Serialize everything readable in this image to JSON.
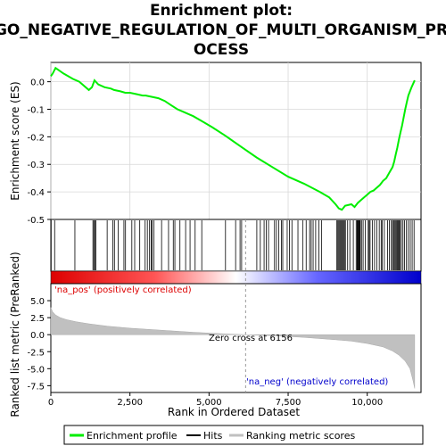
{
  "chart_data": {
    "type": "line",
    "title_line1": "Enrichment plot:",
    "title_line2": "GO_NEGATIVE_REGULATION_OF_MULTI_ORGANISM_PR",
    "title_line3": "OCESS",
    "top_panel": {
      "ylabel": "Enrichment score (ES)",
      "ylim": [
        -0.5,
        0.07
      ],
      "yticks": [
        0.0,
        -0.1,
        -0.2,
        -0.3,
        -0.4,
        -0.5
      ],
      "ytick_labels": [
        "0.0",
        "-0.1",
        "-0.2",
        "-0.3",
        "-0.4",
        "-0.5"
      ],
      "grid": true,
      "series": [
        {
          "name": "Enrichment profile",
          "color": "#00ee00",
          "x": [
            0,
            60,
            150,
            400,
            700,
            900,
            1200,
            1300,
            1380,
            1500,
            1700,
            1900,
            2000,
            2200,
            2350,
            2500,
            2700,
            2900,
            3000,
            3200,
            3400,
            3600,
            3800,
            4000,
            4200,
            4500,
            4800,
            5100,
            5500,
            6000,
            6500,
            7000,
            7500,
            8000,
            8500,
            8800,
            9000,
            9100,
            9200,
            9300,
            9500,
            9600,
            9700,
            9800,
            9900,
            10000,
            10100,
            10200,
            10300,
            10400,
            10500,
            10600,
            10700,
            10800,
            10850,
            10900,
            10950,
            11000,
            11050,
            11100,
            11150,
            11200,
            11250,
            11300,
            11400,
            11500
          ],
          "values": [
            0.02,
            0.03,
            0.05,
            0.03,
            0.01,
            0.0,
            -0.03,
            -0.02,
            0.005,
            -0.01,
            -0.02,
            -0.025,
            -0.03,
            -0.035,
            -0.04,
            -0.04,
            -0.045,
            -0.05,
            -0.05,
            -0.055,
            -0.06,
            -0.07,
            -0.085,
            -0.1,
            -0.11,
            -0.125,
            -0.145,
            -0.165,
            -0.195,
            -0.235,
            -0.275,
            -0.31,
            -0.345,
            -0.37,
            -0.4,
            -0.42,
            -0.445,
            -0.46,
            -0.465,
            -0.45,
            -0.445,
            -0.455,
            -0.44,
            -0.43,
            -0.42,
            -0.41,
            -0.4,
            -0.395,
            -0.385,
            -0.375,
            -0.36,
            -0.35,
            -0.33,
            -0.31,
            -0.29,
            -0.265,
            -0.24,
            -0.21,
            -0.185,
            -0.16,
            -0.13,
            -0.1,
            -0.075,
            -0.05,
            -0.02,
            0.005
          ]
        }
      ]
    },
    "hits_panel": {
      "hit_positions": [
        10,
        120,
        760,
        1330,
        1360,
        1390,
        1420,
        1780,
        1960,
        2010,
        2130,
        2310,
        2360,
        2560,
        2650,
        2810,
        2980,
        3050,
        3120,
        3170,
        3200,
        3260,
        3500,
        3720,
        3870,
        3920,
        4080,
        4260,
        4400,
        4560,
        4770,
        5520,
        5840,
        5980,
        6030,
        6510,
        6620,
        6740,
        6810,
        6880,
        7070,
        7130,
        7200,
        7290,
        7330,
        7470,
        7540,
        7620,
        7810,
        7960,
        8070,
        8180,
        8230,
        8290,
        8370,
        8470,
        8560,
        9040,
        9070,
        9100,
        9130,
        9160,
        9190,
        9220,
        9250,
        9280,
        9310,
        9380,
        9450,
        9560,
        9650,
        9680,
        9700,
        9720,
        9740,
        9760,
        9780,
        9820,
        9870,
        9940,
        10030,
        10060,
        10090,
        10160,
        10230,
        10300,
        10380,
        10440,
        10470,
        10540,
        10640,
        10700,
        10760,
        10800,
        10830,
        10860,
        10890,
        10920,
        10950,
        10980,
        11010,
        11040,
        11080,
        11130,
        11180,
        11240,
        11300,
        11360,
        11420,
        11480
      ]
    },
    "bottom_panel": {
      "ylabel": "Ranked list metric (PreRanked)",
      "xlabel": "Rank in Ordered Dataset",
      "ylim": [
        -8.5,
        7.5
      ],
      "yticks": [
        5.0,
        2.5,
        0.0,
        -2.5,
        -5.0,
        -7.5
      ],
      "ytick_labels": [
        "5.0",
        "2.5",
        "0.0",
        "-2.5",
        "-5.0",
        "-7.5"
      ],
      "xlim": [
        0,
        11700
      ],
      "xticks": [
        0,
        2500,
        5000,
        7500,
        10000
      ],
      "xtick_labels": [
        "0",
        "2,500",
        "5,000",
        "7,500",
        "10,000"
      ],
      "metric_x": [
        0,
        50,
        150,
        300,
        500,
        800,
        1200,
        1800,
        2500,
        3500,
        4500,
        5500,
        6156,
        7000,
        8000,
        9000,
        9500,
        10000,
        10500,
        10800,
        11000,
        11200,
        11350,
        11450,
        11500
      ],
      "metric_y": [
        4.0,
        3.4,
        2.9,
        2.5,
        2.2,
        1.9,
        1.6,
        1.25,
        0.95,
        0.65,
        0.35,
        0.12,
        0.0,
        -0.15,
        -0.4,
        -0.75,
        -0.95,
        -1.3,
        -1.8,
        -2.4,
        -3.0,
        -3.9,
        -5.0,
        -6.8,
        -7.9
      ],
      "pos_label": "'na_pos' (positively correlated)",
      "neg_label": "'na_neg' (negatively correlated)",
      "zero_cross_label": "Zero cross at 6156",
      "zero_cross": 6156
    },
    "legend": {
      "entries": [
        {
          "label": "Enrichment profile",
          "color": "#00ee00"
        },
        {
          "label": "Hits",
          "color": "#000000"
        },
        {
          "label": "Ranking metric scores",
          "color": "#c0c0c0"
        }
      ]
    }
  }
}
